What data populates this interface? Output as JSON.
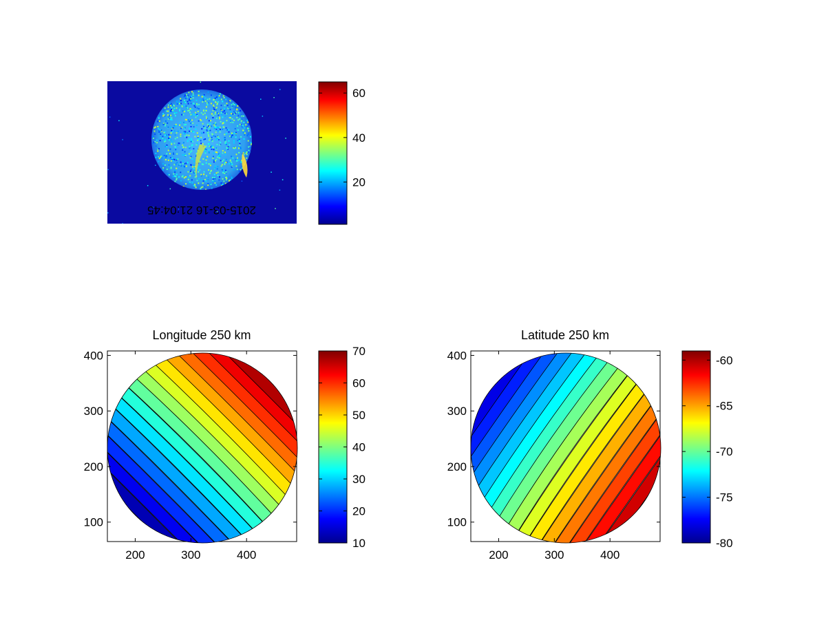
{
  "chart_data": [
    {
      "type": "heatmap",
      "title": "",
      "image_text": "2015-03-16 21:04:45",
      "image_text_color": "#8b1a1a",
      "axes_visible": false,
      "colormap": "jet",
      "colorbar": {
        "ticks": [
          20,
          40,
          60
        ],
        "range": [
          1,
          65
        ]
      }
    },
    {
      "type": "heatmap",
      "title": "Longitude 250 km",
      "contours": true,
      "colormap": "jet",
      "xlim": [
        150,
        490
      ],
      "ylim": [
        65,
        408
      ],
      "xticks": [
        200,
        300,
        400
      ],
      "yticks": [
        100,
        200,
        300,
        400
      ],
      "colorbar": {
        "ticks": [
          10,
          20,
          30,
          40,
          50,
          60,
          70
        ],
        "range": [
          10,
          70
        ]
      },
      "value_range": [
        10,
        70
      ]
    },
    {
      "type": "heatmap",
      "title": "Latitude 250 km",
      "contours": true,
      "colormap": "jet",
      "xlim": [
        150,
        490
      ],
      "ylim": [
        65,
        408
      ],
      "xticks": [
        200,
        300,
        400
      ],
      "yticks": [
        100,
        200,
        300,
        400
      ],
      "colorbar": {
        "ticks": [
          -80,
          -75,
          -70,
          -65,
          -60
        ],
        "range": [
          -80,
          -59
        ]
      },
      "value_range": [
        -80,
        -59
      ]
    }
  ]
}
